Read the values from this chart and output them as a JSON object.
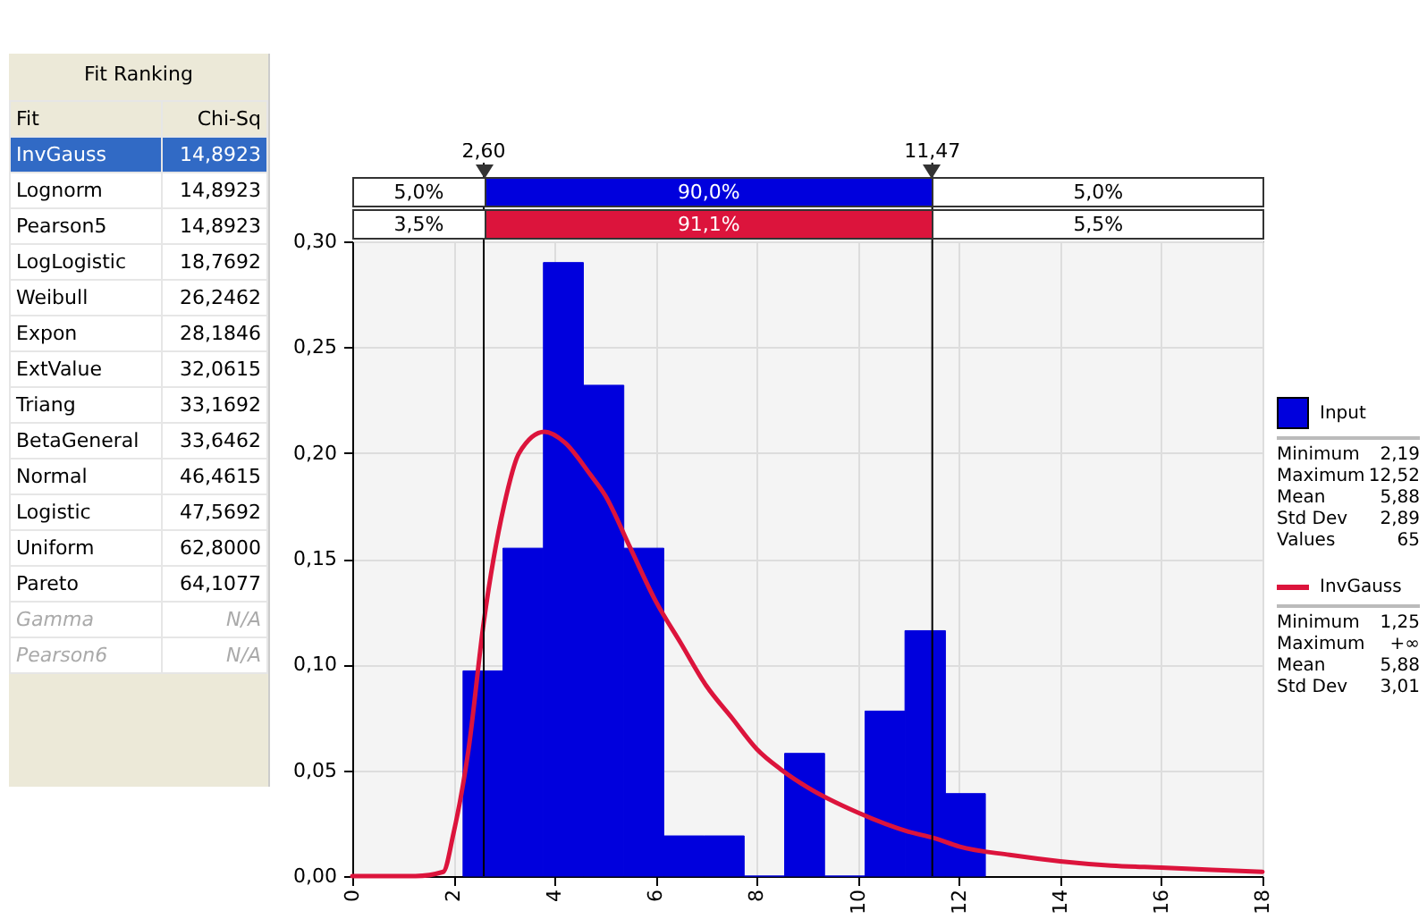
{
  "chart_data": [
    {
      "type": "other",
      "title": "Fit Ranking",
      "annotations": [
        "Fit",
        "Chi-Sq",
        "InvGauss",
        "14,8923",
        "Lognorm",
        "14,8923",
        "Pearson5",
        "14,8923",
        "LogLogistic",
        "18,7692",
        "Weibull",
        "26,2462",
        "Expon",
        "28,1846",
        "ExtValue",
        "32,0615",
        "Triang",
        "33,1692",
        "BetaGeneral",
        "33,6462",
        "Normal",
        "46,4615",
        "Logistic",
        "47,5692",
        "Uniform",
        "62,8000",
        "Pareto",
        "64,1077",
        "Gamma",
        "N/A",
        "Pearson6",
        "N/A"
      ]
    },
    {
      "type": "histogram",
      "bins": [
        2.19,
        2.98,
        3.78,
        4.57,
        5.37,
        6.16,
        6.96,
        7.75,
        8.55,
        9.34,
        10.14,
        10.93,
        11.73,
        12.52
      ],
      "series": [
        {
          "name": "Input",
          "color": "#0000dd",
          "values": [
            0.097,
            0.155,
            0.29,
            0.232,
            0.155,
            0.019,
            0.019,
            0,
            0.058,
            0,
            0.078,
            0.116,
            0.039
          ]
        },
        {
          "name": "InvGauss",
          "type": "line",
          "color": "#dc143c",
          "x": [
            0,
            1.25,
            1.8,
            2,
            2.3,
            2.6,
            3,
            3.3,
            3.8,
            4.2,
            4.7,
            5,
            5.5,
            6,
            6.5,
            7,
            7.5,
            8,
            8.5,
            9,
            10,
            11,
            11.5,
            12,
            13,
            14,
            15,
            16,
            17,
            18
          ],
          "values": [
            0,
            0,
            0.002,
            0.02,
            0.06,
            0.12,
            0.175,
            0.2,
            0.21,
            0.205,
            0.19,
            0.18,
            0.155,
            0.13,
            0.11,
            0.09,
            0.075,
            0.06,
            0.05,
            0.042,
            0.03,
            0.021,
            0.018,
            0.014,
            0.01,
            0.007,
            0.005,
            0.004,
            0.003,
            0.002
          ]
        }
      ],
      "xlim": [
        0,
        18
      ],
      "xticks": [
        0,
        2,
        4,
        6,
        8,
        10,
        12,
        14,
        16,
        18
      ],
      "ylim": [
        0,
        0.3
      ],
      "yticks": [
        {
          "value": 0,
          "label": "0,00"
        },
        {
          "value": 0.05,
          "label": "0,05"
        },
        {
          "value": 0.1,
          "label": "0,10"
        },
        {
          "value": 0.15,
          "label": "0,15"
        },
        {
          "value": 0.2,
          "label": "0,20"
        },
        {
          "value": 0.25,
          "label": "0,25"
        },
        {
          "value": 0.3,
          "label": "0,30"
        }
      ],
      "grid": true,
      "legend": "right",
      "ref_lines": [
        {
          "axis": "x",
          "value": 2.6,
          "label": "2,60"
        },
        {
          "axis": "x",
          "value": 11.47,
          "label": "11,47"
        }
      ],
      "annotations": [
        "5,0%",
        "90,0%",
        "5,0%",
        "3,5%",
        "91,1%",
        "5,5%",
        "Minimum",
        "2,19",
        "Maximum",
        "12,52",
        "Mean",
        "5,88",
        "Std Dev",
        "2,89",
        "Values",
        "65",
        "Minimum",
        "1,25",
        "Maximum",
        "+∞",
        "Mean",
        "5,88",
        "Std Dev",
        "3,01"
      ]
    }
  ]
}
